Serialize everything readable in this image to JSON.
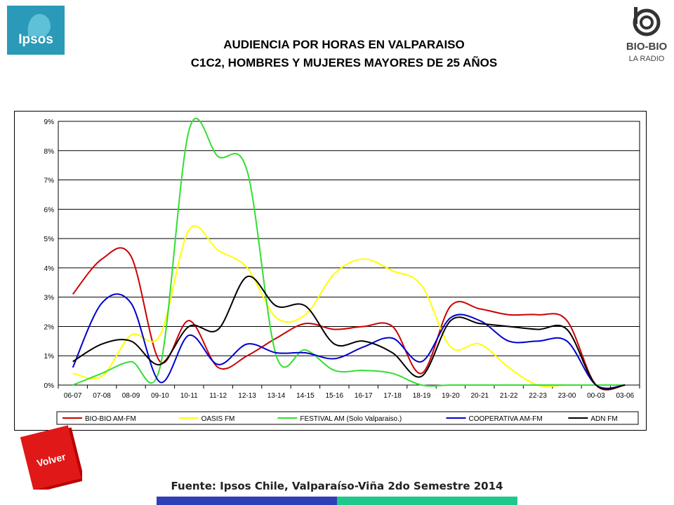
{
  "header": {
    "title_line1": "AUDIENCIA POR HORAS EN VALPARAISO",
    "title_line2": "C1C2, HOMBRES Y MUJERES MAYORES DE 25 AÑOS"
  },
  "logos": {
    "ipsos": "Ipsos",
    "biobio_name": "BIO-BIO",
    "biobio_sub": "LA RADIO"
  },
  "footer": {
    "volver": "Volver",
    "source": "Fuente: Ipsos Chile, Valparaíso-Viña 2do Semestre 2014"
  },
  "colors": {
    "biobio": "#cc0000",
    "oasis": "#ffff00",
    "festival": "#33dd33",
    "cooperativa": "#0000cc",
    "adn": "#000000",
    "ipsos_brand": "#2a9ab8",
    "volver": "#e01010"
  },
  "chart_data": {
    "type": "line",
    "title": "",
    "xlabel": "",
    "ylabel": "",
    "ylim": [
      0,
      9
    ],
    "y_ticks": [
      "0%",
      "1%",
      "2%",
      "3%",
      "4%",
      "5%",
      "6%",
      "7%",
      "8%",
      "9%"
    ],
    "grid": true,
    "legend_position": "bottom",
    "categories": [
      "06-07",
      "07-08",
      "08-09",
      "09-10",
      "10-11",
      "11-12",
      "12-13",
      "13-14",
      "14-15",
      "15-16",
      "16-17",
      "17-18",
      "18-19",
      "19-20",
      "20-21",
      "21-22",
      "22-23",
      "23-00",
      "00-03",
      "03-06"
    ],
    "series": [
      {
        "name": "BIO-BIO AM-FM",
        "color": "#cc0000",
        "values": [
          3.1,
          4.3,
          4.4,
          0.8,
          2.2,
          0.6,
          1.0,
          1.6,
          2.1,
          1.9,
          2.0,
          2.0,
          0.4,
          2.7,
          2.6,
          2.4,
          2.4,
          2.2,
          0.0,
          0.0
        ]
      },
      {
        "name": "OASIS FM",
        "color": "#ffff00",
        "values": [
          0.4,
          0.3,
          1.7,
          1.7,
          5.3,
          4.6,
          4.0,
          2.3,
          2.4,
          3.8,
          4.3,
          3.9,
          3.4,
          1.3,
          1.4,
          0.6,
          0.0,
          0.0,
          0.0,
          0.0
        ]
      },
      {
        "name": "FESTIVAL AM (Solo Valparaiso.)",
        "color": "#33dd33",
        "values": [
          0.0,
          0.4,
          0.8,
          0.6,
          8.7,
          7.8,
          7.3,
          1.0,
          1.2,
          0.5,
          0.5,
          0.4,
          0.0,
          0.0,
          0.0,
          0.0,
          0.0,
          0.0,
          0.0,
          0.0
        ]
      },
      {
        "name": "COOPERATIVA AM-FM",
        "color": "#0000cc",
        "values": [
          0.6,
          2.8,
          2.8,
          0.1,
          1.7,
          0.7,
          1.4,
          1.1,
          1.1,
          0.9,
          1.3,
          1.6,
          0.8,
          2.3,
          2.2,
          1.5,
          1.5,
          1.5,
          0.0,
          0.0
        ]
      },
      {
        "name": "ADN FM",
        "color": "#000000",
        "values": [
          0.8,
          1.4,
          1.5,
          0.7,
          2.0,
          1.9,
          3.7,
          2.7,
          2.7,
          1.4,
          1.5,
          1.1,
          0.3,
          2.2,
          2.1,
          2.0,
          1.9,
          1.9,
          0.0,
          0.0
        ]
      }
    ]
  }
}
